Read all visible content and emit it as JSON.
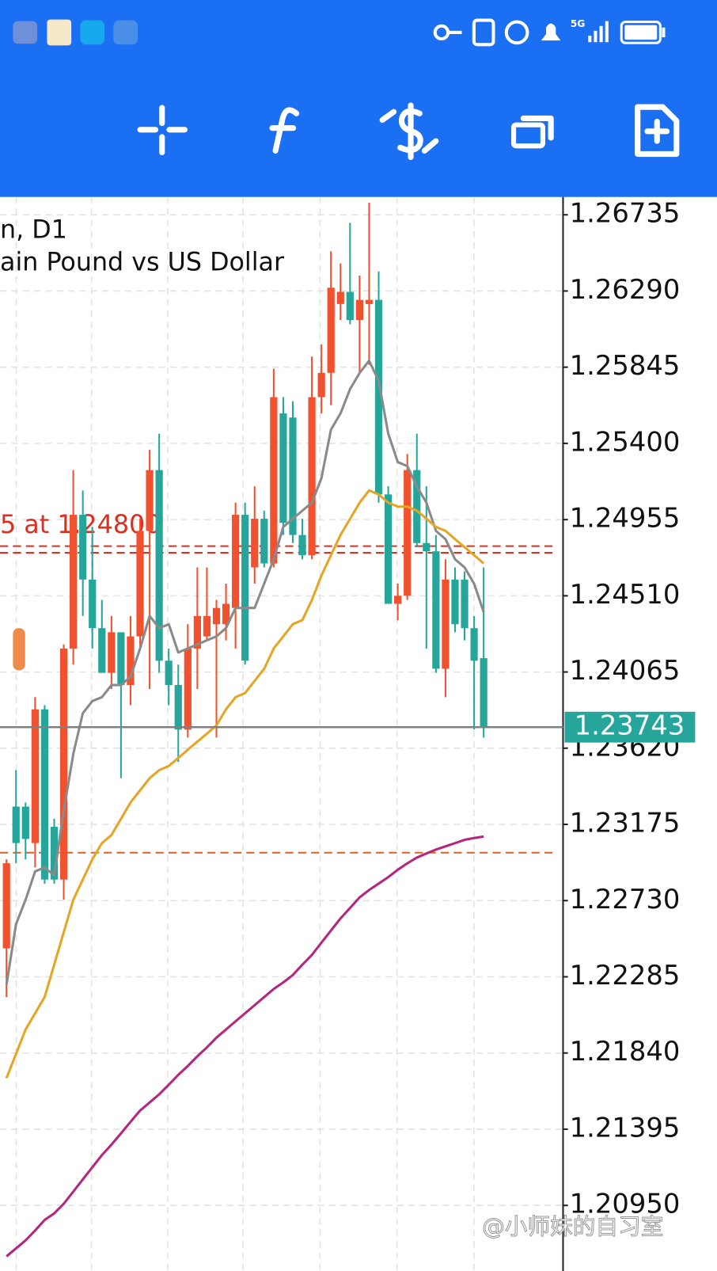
{
  "status_bar": {
    "network": "5G"
  },
  "chart_data": {
    "type": "candlestick",
    "symbol_timeframe": "n, D1",
    "description": "ain Pound vs US Dollar",
    "categories": [
      null,
      null,
      null,
      null,
      null,
      null,
      null,
      null,
      null,
      null,
      null,
      null,
      null,
      null,
      null,
      null,
      null,
      null,
      null,
      null,
      null,
      null,
      null,
      null,
      null,
      null,
      null,
      null,
      null,
      null,
      null,
      null,
      null,
      null,
      null,
      null,
      null,
      null,
      null,
      null,
      null,
      null,
      null,
      null,
      null,
      null,
      null,
      null,
      null,
      null,
      null
    ],
    "open": [
      1.22451,
      1.23279,
      1.23279,
      1.23066,
      1.23847,
      1.23161,
      1.22853,
      1.24202,
      1.24983,
      1.24605,
      1.24321,
      1.2406,
      1.24297,
      1.23989,
      1.24273,
      1.24889,
      1.25244,
      1.24131,
      1.23989,
      1.23729,
      1.24202,
      1.24273,
      1.24344,
      1.24344,
      1.24439,
      1.24983,
      1.24676,
      1.2496,
      1.24699,
      1.25575,
      1.25551,
      1.24865,
      1.24747,
      1.2567,
      1.25812,
      1.26214,
      1.26285,
      1.2612,
      1.26214,
      1.26238,
      1.25102,
      1.24463,
      1.2451,
      1.25244,
      1.24818,
      1.2477,
      1.24084,
      1.24605,
      1.24605,
      1.24321,
      1.24146
    ],
    "high": [
      1.22971,
      1.23492,
      1.23303,
      1.23918,
      1.23871,
      1.23208,
      1.24226,
      1.25244,
      1.25125,
      1.24912,
      1.24486,
      1.24392,
      1.24297,
      1.24392,
      1.2496,
      1.25362,
      1.25457,
      1.24202,
      1.24108,
      1.24344,
      1.24676,
      1.24676,
      1.24486,
      1.24581,
      1.25054,
      1.25054,
      1.25149,
      1.25007,
      1.25836,
      1.2567,
      1.25646,
      1.2496,
      1.25907,
      1.25978,
      1.26522,
      1.26451,
      1.26688,
      1.2638,
      1.26806,
      1.26404,
      1.25149,
      1.24581,
      1.25338,
      1.25457,
      1.25149,
      1.24865,
      1.24723,
      1.24676,
      1.24652,
      1.24392,
      1.24676
    ],
    "low": [
      1.22167,
      1.22948,
      1.22971,
      1.22924,
      1.22829,
      1.22829,
      1.22735,
      1.24108,
      1.24392,
      1.24202,
      1.2406,
      1.23966,
      1.23445,
      1.23871,
      1.24202,
      1.23966,
      1.2406,
      1.23871,
      1.2354,
      1.23682,
      1.23966,
      1.2425,
      1.23682,
      1.2425,
      1.24202,
      1.24108,
      1.24581,
      1.24676,
      1.24676,
      1.24865,
      1.24818,
      1.24723,
      1.24723,
      1.25575,
      1.25623,
      1.2612,
      1.26096,
      1.25812,
      1.25859,
      1.25054,
      1.24463,
      1.24368,
      1.24486,
      1.24794,
      1.24202,
      1.2406,
      1.23918,
      1.24297,
      1.2425,
      1.23729,
      1.23682
    ],
    "close": [
      1.22948,
      1.23066,
      1.2309,
      1.23847,
      1.22853,
      1.22853,
      1.24202,
      1.24983,
      1.24605,
      1.24321,
      1.2406,
      1.24297,
      1.23989,
      1.24273,
      1.24889,
      1.25244,
      1.24131,
      1.23989,
      1.23729,
      1.24202,
      1.24392,
      1.24392,
      1.24439,
      1.24463,
      1.24983,
      1.24131,
      1.2496,
      1.24699,
      1.2567,
      1.24936,
      1.24865,
      1.24747,
      1.2567,
      1.25812,
      1.26309,
      1.26285,
      1.2612,
      1.26238,
      1.26238,
      1.25102,
      1.24463,
      1.2451,
      1.25244,
      1.24818,
      1.2477,
      1.24084,
      1.24605,
      1.24344,
      1.24321,
      1.24131,
      1.23743
    ],
    "up_color": "#f0512e",
    "down_color": "#26a69a",
    "series": [
      {
        "color": "#8a8a8a",
        "values": [
          1.22238,
          1.22593,
          1.22735,
          1.229,
          1.22924,
          1.22877,
          1.23256,
          1.23587,
          1.23824,
          1.23895,
          1.23918,
          1.23989,
          1.23989,
          1.24037,
          1.24202,
          1.24392,
          1.24321,
          1.24344,
          1.24179,
          1.24202,
          1.24226,
          1.2425,
          1.24273,
          1.24321,
          1.24439,
          1.24439,
          1.24439,
          1.24581,
          1.24723,
          1.24912,
          1.2496,
          1.25007,
          1.25054,
          1.25196,
          1.2548,
          1.25575,
          1.25717,
          1.25812,
          1.25883,
          1.25765,
          1.25457,
          1.25291,
          1.25267,
          1.25149,
          1.25054,
          1.24889,
          1.24841,
          1.24723,
          1.24676,
          1.24581,
          1.24415
        ]
      },
      {
        "color": "#e5a526",
        "values": [
          1.21693,
          1.21835,
          1.21977,
          1.22072,
          1.22167,
          1.22356,
          1.22545,
          1.22735,
          1.22853,
          1.22971,
          1.23066,
          1.23113,
          1.23208,
          1.23303,
          1.23374,
          1.23445,
          1.23492,
          1.23516,
          1.23563,
          1.23611,
          1.23658,
          1.23705,
          1.23753,
          1.23847,
          1.23918,
          1.23942,
          1.24013,
          1.24084,
          1.24202,
          1.24273,
          1.24344,
          1.24368,
          1.24486,
          1.24628,
          1.24747,
          1.24865,
          1.2496,
          1.25054,
          1.25125,
          1.25102,
          1.25054,
          1.25031,
          1.25031,
          1.25007,
          1.2496,
          1.24912,
          1.24889,
          1.24841,
          1.24794,
          1.24747,
          1.24699
        ]
      },
      {
        "color": "#b3287c",
        "values": [
          1.20652,
          1.20699,
          1.20746,
          1.20803,
          1.20865,
          1.20903,
          1.2096,
          1.21031,
          1.21102,
          1.21173,
          1.21244,
          1.21305,
          1.21371,
          1.21438,
          1.21504,
          1.21551,
          1.21599,
          1.21655,
          1.21712,
          1.21764,
          1.21821,
          1.21873,
          1.2193,
          1.21977,
          1.22025,
          1.22072,
          1.22119,
          1.22167,
          1.22214,
          1.22252,
          1.22295,
          1.22356,
          1.22413,
          1.22484,
          1.22555,
          1.22626,
          1.22687,
          1.22749,
          1.22792,
          1.22829,
          1.22867,
          1.2291,
          1.22948,
          1.22981,
          1.23005,
          1.23028,
          1.23047,
          1.23066,
          1.23085,
          1.23095,
          1.23104
        ]
      }
    ],
    "levels": [
      {
        "value": 1.248,
        "label": "5 at 1.24800",
        "color": "#d9301f"
      },
      {
        "value": 1.24761,
        "color": "#d9301f"
      },
      {
        "value": 1.2301,
        "color": "#d9612a"
      }
    ],
    "last_price": 1.23743,
    "last_price_color": "#26a69a",
    "ylim": [
      1.20567,
      1.26839
    ],
    "yticks": [
      1.26735,
      {
        "value": 1.2629,
        "label": "1.26290"
      },
      1.25845,
      {
        "value": 1.254,
        "label": "1.25400"
      },
      1.24955,
      {
        "value": 1.2451,
        "label": "1.24510"
      },
      1.24065,
      {
        "value": 1.2362,
        "label": "1.23620"
      },
      1.23175,
      {
        "value": 1.2273,
        "label": "1.22730"
      },
      1.22285,
      {
        "value": 1.2184,
        "label": "1.21840"
      },
      1.21395,
      {
        "value": 1.2095,
        "label": "1.20950"
      }
    ],
    "grid": true
  },
  "watermark": "@小师妹的自习室"
}
